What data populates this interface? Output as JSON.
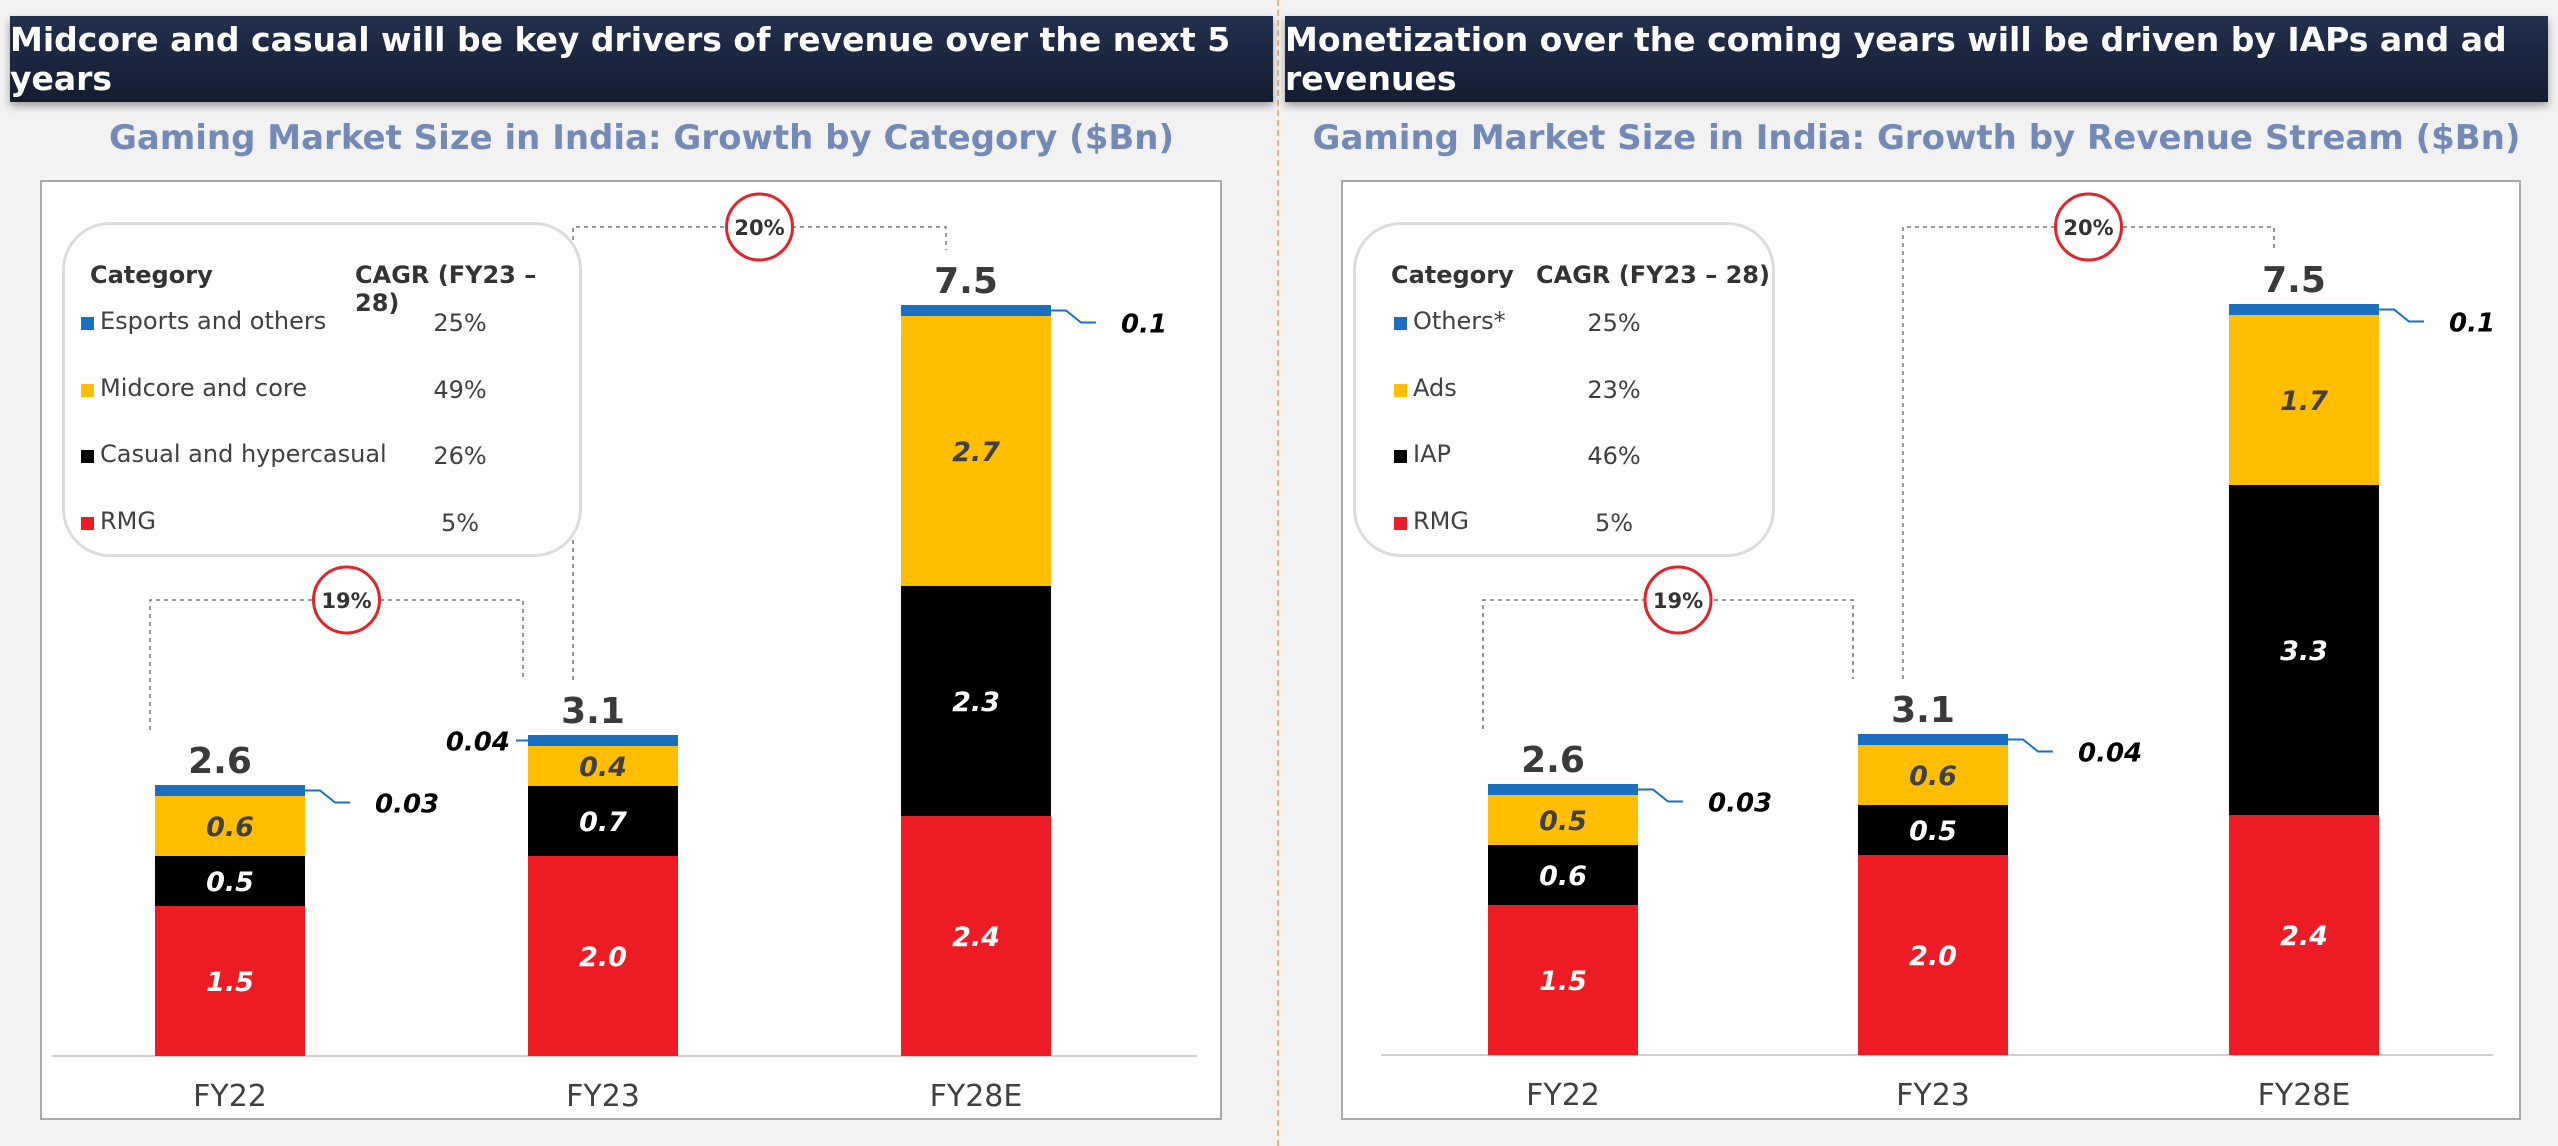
{
  "panels": [
    {
      "banner": "Midcore and casual will be key drivers of revenue over the next 5 years",
      "subtitle": "Gaming Market Size in India: Growth by Category ($Bn)",
      "legend": {
        "header_category": "Category",
        "header_cagr": "CAGR (FY23 – 28)",
        "rows": [
          {
            "name": "Esports and others",
            "cagr": "25%",
            "color": "#1a6fc0"
          },
          {
            "name": "Midcore and core",
            "cagr": "49%",
            "color": "#ffbf00"
          },
          {
            "name": "Casual and hypercasual",
            "cagr": "26%",
            "color": "#000000"
          },
          {
            "name": "RMG",
            "cagr": "5%",
            "color": "#ed1c24"
          }
        ]
      },
      "chart_data": {
        "type": "bar",
        "stacked": true,
        "categories": [
          "FY22",
          "FY23",
          "FY28E"
        ],
        "totals": [
          "2.6",
          "3.1",
          "7.5"
        ],
        "series": [
          {
            "name": "RMG",
            "color": "#ed1c24",
            "values": [
              1.5,
              2.0,
              2.4
            ],
            "labels": [
              "1.5",
              "2.0",
              "2.4"
            ],
            "label_color": "#ffffff"
          },
          {
            "name": "Casual and hypercasual",
            "color": "#000000",
            "values": [
              0.5,
              0.7,
              2.3
            ],
            "labels": [
              "0.5",
              "0.7",
              "2.3"
            ],
            "label_color": "#ffffff"
          },
          {
            "name": "Midcore and core",
            "color": "#ffbf00",
            "values": [
              0.6,
              0.4,
              2.7
            ],
            "labels": [
              "0.6",
              "0.4",
              "2.7"
            ],
            "label_color": "#404040"
          },
          {
            "name": "Esports and others",
            "color": "#1a6fc0",
            "values": [
              0.03,
              0.04,
              0.1
            ],
            "labels": [
              "0.03",
              "0.04",
              "0.1"
            ],
            "outside": true,
            "outside_side": [
              "right",
              "left",
              "right"
            ]
          }
        ],
        "cagr_annotations": [
          {
            "from": "FY22",
            "to": "FY23",
            "label": "19%"
          },
          {
            "from": "FY23",
            "to": "FY28E",
            "label": "20%"
          }
        ]
      }
    },
    {
      "banner": "Monetization over the coming years will be driven by IAPs and ad revenues",
      "subtitle": "Gaming Market Size in India: Growth by Revenue Stream ($Bn)",
      "legend": {
        "header_category": "Category",
        "header_cagr": "CAGR (FY23 – 28)",
        "rows": [
          {
            "name": "Others*",
            "cagr": "25%",
            "color": "#1a6fc0"
          },
          {
            "name": "Ads",
            "cagr": "23%",
            "color": "#ffbf00"
          },
          {
            "name": "IAP",
            "cagr": "46%",
            "color": "#000000"
          },
          {
            "name": "RMG",
            "cagr": "5%",
            "color": "#ed1c24"
          }
        ]
      },
      "chart_data": {
        "type": "bar",
        "stacked": true,
        "categories": [
          "FY22",
          "FY23",
          "FY28E"
        ],
        "totals": [
          "2.6",
          "3.1",
          "7.5"
        ],
        "series": [
          {
            "name": "RMG",
            "color": "#ed1c24",
            "values": [
              1.5,
              2.0,
              2.4
            ],
            "labels": [
              "1.5",
              "2.0",
              "2.4"
            ],
            "label_color": "#ffffff"
          },
          {
            "name": "IAP",
            "color": "#000000",
            "values": [
              0.6,
              0.5,
              3.3
            ],
            "labels": [
              "0.6",
              "0.5",
              "3.3"
            ],
            "label_color": "#ffffff"
          },
          {
            "name": "Ads",
            "color": "#ffbf00",
            "values": [
              0.5,
              0.6,
              1.7
            ],
            "labels": [
              "0.5",
              "0.6",
              "1.7"
            ],
            "label_color": "#404040"
          },
          {
            "name": "Others*",
            "color": "#1a6fc0",
            "values": [
              0.03,
              0.04,
              0.1
            ],
            "labels": [
              "0.03",
              "0.04",
              "0.1"
            ],
            "outside": true,
            "outside_side": [
              "right",
              "right",
              "right"
            ]
          }
        ],
        "cagr_annotations": [
          {
            "from": "FY22",
            "to": "FY23",
            "label": "19%"
          },
          {
            "from": "FY23",
            "to": "FY28E",
            "label": "20%"
          }
        ]
      }
    }
  ]
}
